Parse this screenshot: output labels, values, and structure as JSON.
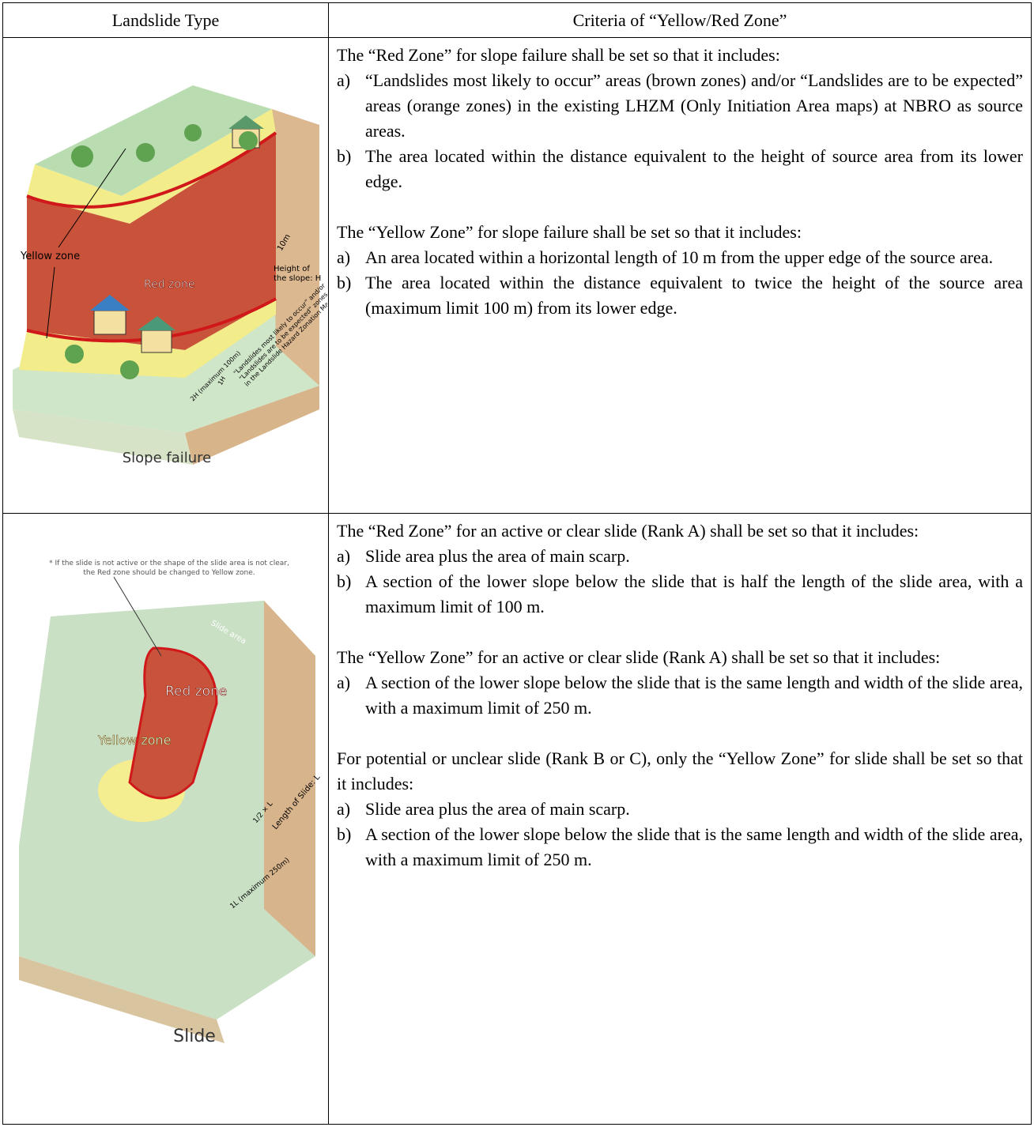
{
  "table": {
    "header": [
      "Landslide Type",
      "Criteria of “Yellow/Red Zone”"
    ],
    "rows": [
      {
        "type": "Slope failure",
        "figure_labels": {
          "yellow_zone": "Yellow zone",
          "red_zone": "Red zone",
          "ten_m": "10m",
          "height": [
            "Height of",
            "the slope: H"
          ],
          "zones_note": [
            "“Landslides most likely to occur” and/or",
            "“Landslides are to be expected” zones",
            "in the Landslide Hazard Zonation Map"
          ],
          "one_h": "1H",
          "two_h": "2H (maximum 100m)"
        },
        "criteria": [
          {
            "intro": "The “Red Zone” for slope failure shall be set so that it includes:",
            "items": [
              {
                "marker": "a)",
                "text": "“Landslides most likely to occur” areas (brown zones) and/or “Landslides are to be expected” areas (orange zones) in the existing LHZM (Only Initiation Area maps) at NBRO as source areas."
              },
              {
                "marker": "b)",
                "text": "The area located within the distance equivalent to the height of source area from its lower edge."
              }
            ]
          },
          {
            "intro": "The “Yellow Zone” for slope failure shall be set so that it includes:",
            "items": [
              {
                "marker": "a)",
                "text": "An area located within a horizontal length of 10 m from the upper edge of the source area."
              },
              {
                "marker": "b)",
                "text": "The area located within the distance equivalent to twice the height of the source area (maximum limit 100 m) from its lower edge."
              }
            ]
          }
        ]
      },
      {
        "type": "Slide",
        "figure_labels": {
          "note": [
            "* If the slide is not active or the shape of the slide area is not clear,",
            "the Red zone should be changed to Yellow zone."
          ],
          "slide_area": "Slide area",
          "red_zone": "Red zone",
          "yellow_zone": "Yellow zone",
          "half_l": "1/2 × L",
          "length": "Length of Slide: L",
          "one_l": "1L (maximum 250m)"
        },
        "criteria": [
          {
            "intro": "The “Red Zone” for an active or clear slide (Rank A) shall be set so that it includes:",
            "items": [
              {
                "marker": "a)",
                "text": "Slide area plus the area of main scarp."
              },
              {
                "marker": "b)",
                "text": "A section of the lower slope below the slide that is half the length of the slide area, with a maximum limit of 100 m."
              }
            ]
          },
          {
            "intro": "The “Yellow Zone” for an active or clear slide (Rank A) shall be set so that it includes:",
            "items": [
              {
                "marker": "a)",
                "text": "A section of the lower slope below the slide that is the same length and width of the slide area, with a maximum limit of 250 m."
              }
            ]
          },
          {
            "intro": "For potential or unclear slide (Rank B or C), only the “Yellow Zone” for slide shall be set so that it includes:",
            "items": [
              {
                "marker": "a)",
                "text": "Slide area plus the area of main scarp."
              },
              {
                "marker": "b)",
                "text": "A section of the lower slope below the slide that is the same length and width of the slide area, with a maximum limit of 250 m."
              }
            ]
          }
        ]
      }
    ]
  }
}
